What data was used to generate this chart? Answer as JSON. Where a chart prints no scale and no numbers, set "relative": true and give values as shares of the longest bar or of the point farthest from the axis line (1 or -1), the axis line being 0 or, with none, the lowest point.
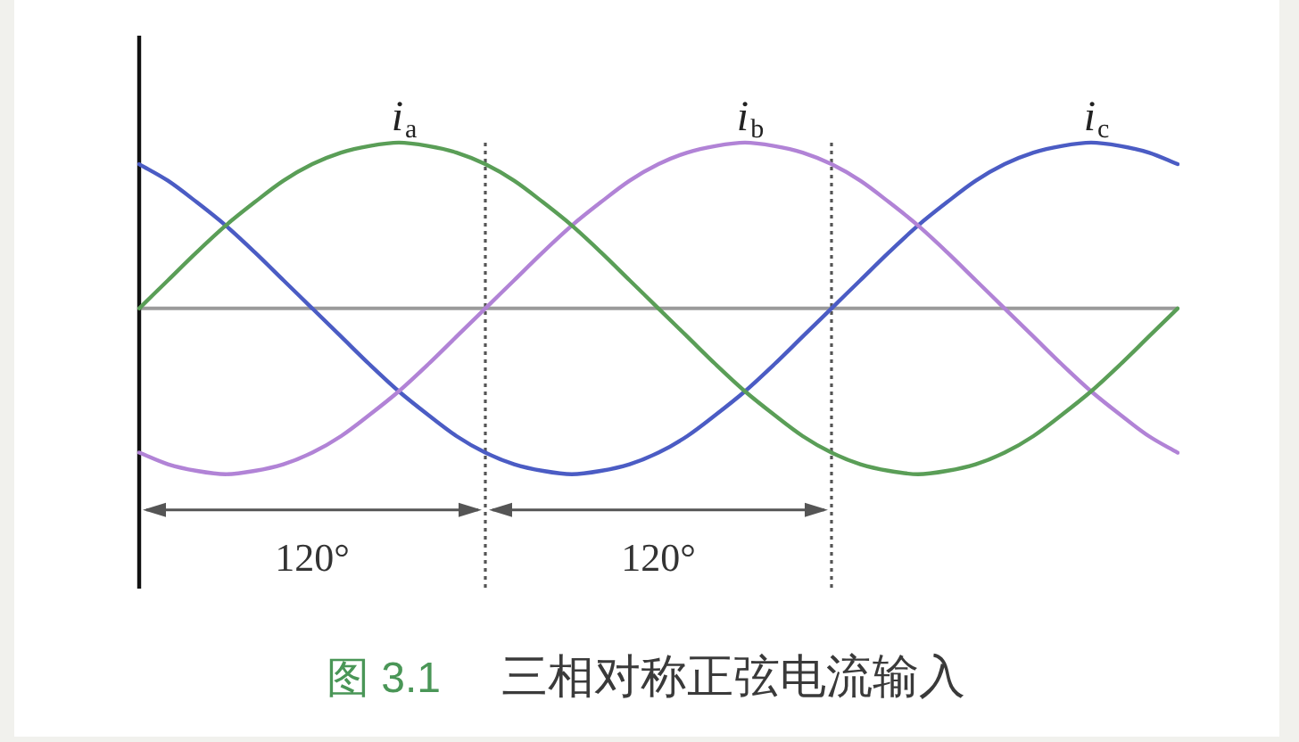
{
  "chart_data": {
    "type": "line",
    "relative": true,
    "tick_labels": false,
    "categories": [
      null,
      null,
      null,
      null,
      null,
      null,
      null,
      null,
      null,
      null,
      null,
      null,
      null,
      null,
      null,
      null,
      null,
      null,
      null,
      null,
      null,
      null,
      null,
      null,
      null,
      null,
      null,
      null,
      null,
      null,
      null,
      null,
      null,
      null,
      null,
      null,
      null
    ],
    "series": [
      {
        "name": "i$_{a}$",
        "color": "#5a9e57",
        "values": [
          0,
          0.17,
          0.34,
          0.5,
          0.64,
          0.77,
          0.87,
          0.94,
          0.98,
          1,
          0.98,
          0.94,
          0.87,
          0.77,
          0.64,
          0.5,
          0.34,
          0.17,
          0,
          -0.17,
          -0.34,
          -0.5,
          -0.64,
          -0.77,
          -0.87,
          -0.94,
          -0.98,
          -1,
          -0.98,
          -0.94,
          -0.87,
          -0.77,
          -0.64,
          -0.5,
          -0.34,
          -0.17,
          0
        ]
      },
      {
        "name": "i$_{b}$",
        "color": "#b183d6",
        "values": [
          -0.87,
          -0.94,
          -0.98,
          -1,
          -0.98,
          -0.94,
          -0.87,
          -0.77,
          -0.64,
          -0.5,
          -0.34,
          -0.17,
          0,
          0.17,
          0.34,
          0.5,
          0.64,
          0.77,
          0.87,
          0.94,
          0.98,
          1,
          0.98,
          0.94,
          0.87,
          0.77,
          0.64,
          0.5,
          0.34,
          0.17,
          0,
          -0.17,
          -0.34,
          -0.5,
          -0.64,
          -0.77,
          -0.87
        ]
      },
      {
        "name": "i$_{c}$",
        "color": "#4b5cc4",
        "values": [
          0.87,
          0.77,
          0.64,
          0.5,
          0.34,
          0.17,
          0,
          -0.17,
          -0.34,
          -0.5,
          -0.64,
          -0.77,
          -0.87,
          -0.94,
          -0.98,
          -1,
          -0.98,
          -0.94,
          -0.87,
          -0.77,
          -0.64,
          -0.5,
          -0.34,
          -0.17,
          0,
          0.17,
          0.34,
          0.5,
          0.64,
          0.77,
          0.87,
          0.94,
          0.98,
          1,
          0.98,
          0.94,
          0.87
        ]
      }
    ],
    "annotations": [
      "120°",
      "120°",
      "图 3.1",
      "三相对称正弦电流输入"
    ]
  }
}
